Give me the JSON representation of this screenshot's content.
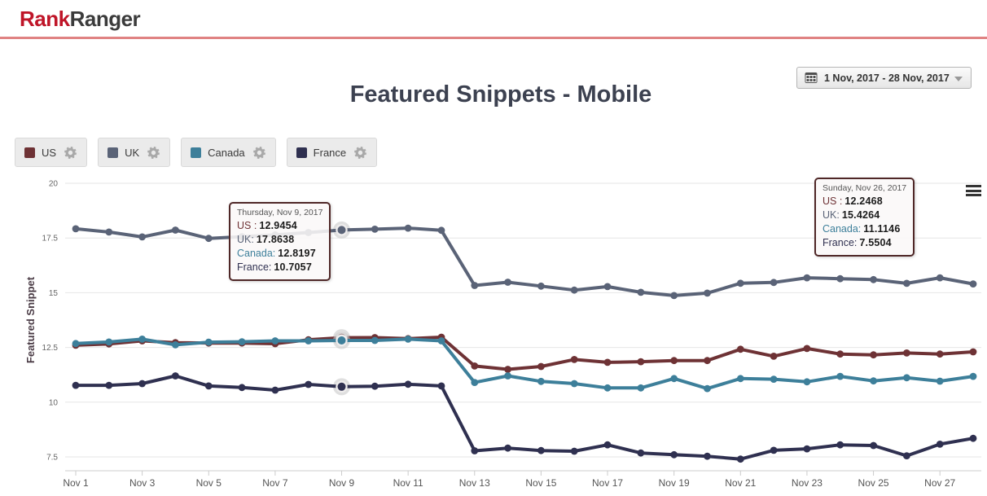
{
  "header": {
    "logo_part1": "Rank",
    "logo_part2": "Ranger"
  },
  "title": "Featured Snippets - Mobile",
  "date_picker": {
    "value": "1 Nov, 2017 - 28 Nov, 2017"
  },
  "legend": [
    {
      "name": "US",
      "color": "#6e3235"
    },
    {
      "name": "UK",
      "color": "#5a6377"
    },
    {
      "name": "Canada",
      "color": "#3d7f9a"
    },
    {
      "name": "France",
      "color": "#2f3050"
    }
  ],
  "chart_data": {
    "type": "line",
    "ylabel": "Featured Snippet",
    "yticks": [
      20,
      17.5,
      15,
      12.5,
      10,
      7.5
    ],
    "ylim": [
      7.5,
      20
    ],
    "grid": "horizontal",
    "legend_position": "top-left",
    "highlight_index": 8,
    "dates": [
      "Nov 1",
      "Nov 2",
      "Nov 3",
      "Nov 4",
      "Nov 5",
      "Nov 6",
      "Nov 7",
      "Nov 8",
      "Nov 9",
      "Nov 10",
      "Nov 11",
      "Nov 12",
      "Nov 13",
      "Nov 14",
      "Nov 15",
      "Nov 16",
      "Nov 17",
      "Nov 18",
      "Nov 19",
      "Nov 20",
      "Nov 21",
      "Nov 22",
      "Nov 23",
      "Nov 24",
      "Nov 25",
      "Nov 26",
      "Nov 27",
      "Nov 28"
    ],
    "series": [
      {
        "name": "US",
        "color": "#6e3235",
        "values": [
          12.6,
          12.66,
          12.8,
          12.72,
          12.7,
          12.7,
          12.67,
          12.85,
          12.9454,
          12.95,
          12.9,
          12.97,
          11.65,
          11.5,
          11.63,
          11.95,
          11.82,
          11.85,
          11.9,
          11.9,
          12.42,
          12.1,
          12.45,
          12.2,
          12.16,
          12.2468,
          12.2,
          12.3
        ]
      },
      {
        "name": "UK",
        "color": "#5a6377",
        "values": [
          17.92,
          17.77,
          17.55,
          17.86,
          17.48,
          17.56,
          17.64,
          17.75,
          17.8638,
          17.9,
          17.95,
          17.85,
          15.33,
          15.48,
          15.3,
          15.12,
          15.28,
          15.02,
          14.87,
          14.98,
          15.43,
          15.47,
          15.68,
          15.64,
          15.6,
          15.4264,
          15.68,
          15.4
        ]
      },
      {
        "name": "Canada",
        "color": "#3d7f9a",
        "values": [
          12.68,
          12.75,
          12.88,
          12.62,
          12.74,
          12.76,
          12.8,
          12.8,
          12.8197,
          12.82,
          12.88,
          12.8,
          10.9,
          11.2,
          10.95,
          10.85,
          10.65,
          10.65,
          11.08,
          10.62,
          11.08,
          11.05,
          10.93,
          11.18,
          10.97,
          11.1146,
          10.96,
          11.18
        ]
      },
      {
        "name": "France",
        "color": "#2f3050",
        "values": [
          10.77,
          10.77,
          10.85,
          11.2,
          10.74,
          10.67,
          10.55,
          10.81,
          10.7057,
          10.73,
          10.82,
          10.74,
          7.78,
          7.9,
          7.79,
          7.76,
          8.05,
          7.68,
          7.6,
          7.53,
          7.4,
          7.8,
          7.87,
          8.05,
          8.02,
          7.5504,
          8.08,
          8.35
        ]
      }
    ]
  },
  "tooltips": [
    {
      "date": "Thursday, Nov 9, 2017",
      "rows": [
        {
          "label": "US :",
          "value": "12.9454",
          "color": "#6e3235"
        },
        {
          "label": "UK:",
          "value": "17.8638",
          "color": "#5a6377"
        },
        {
          "label": "Canada:",
          "value": "12.8197",
          "color": "#3d7f9a"
        },
        {
          "label": "France:",
          "value": "10.7057",
          "color": "#2f3050"
        }
      ]
    },
    {
      "date": "Sunday, Nov 26, 2017",
      "rows": [
        {
          "label": "US :",
          "value": "12.2468",
          "color": "#6e3235"
        },
        {
          "label": "UK:",
          "value": "15.4264",
          "color": "#5a6377"
        },
        {
          "label": "Canada:",
          "value": "11.1146",
          "color": "#3d7f9a"
        },
        {
          "label": "France:",
          "value": "7.5504",
          "color": "#2f3050"
        }
      ]
    }
  ],
  "icons": {
    "menu": "hamburger-menu",
    "calendar": "calendar",
    "gear": "settings-gear"
  }
}
